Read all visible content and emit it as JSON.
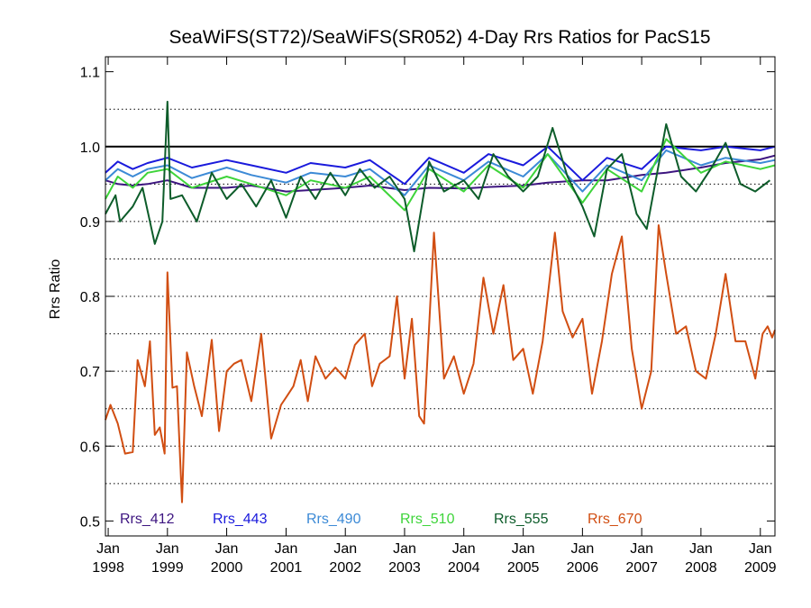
{
  "chart_data": {
    "type": "line",
    "title": "SeaWiFS(ST72)/SeaWiFS(SR052) 4-Day Rrs Ratios for PacS15",
    "xlabel": "",
    "ylabel": "Rrs Ratio",
    "xlim": [
      "1997-12-15",
      "2009-04-01"
    ],
    "ylim": [
      0.48,
      1.12
    ],
    "y_ticks": [
      0.5,
      0.6,
      0.7,
      0.8,
      0.9,
      1.0,
      1.1
    ],
    "y_tick_labels": [
      "0.5",
      "0.6",
      "0.7",
      "0.8",
      "0.9",
      "1.0",
      "1.1"
    ],
    "x_ticks": [
      {
        "date": "1998-01-01",
        "month": "Jan",
        "year": "1998"
      },
      {
        "date": "1999-01-01",
        "month": "Jan",
        "year": "1999"
      },
      {
        "date": "2000-01-01",
        "month": "Jan",
        "year": "2000"
      },
      {
        "date": "2001-01-01",
        "month": "Jan",
        "year": "2001"
      },
      {
        "date": "2002-01-01",
        "month": "Jan",
        "year": "2002"
      },
      {
        "date": "2003-01-01",
        "month": "Jan",
        "year": "2003"
      },
      {
        "date": "2004-01-01",
        "month": "Jan",
        "year": "2004"
      },
      {
        "date": "2005-01-01",
        "month": "Jan",
        "year": "2005"
      },
      {
        "date": "2006-01-01",
        "month": "Jan",
        "year": "2006"
      },
      {
        "date": "2007-01-01",
        "month": "Jan",
        "year": "2007"
      },
      {
        "date": "2008-01-01",
        "month": "Jan",
        "year": "2008"
      },
      {
        "date": "2009-01-01",
        "month": "Jan",
        "year": "2009"
      }
    ],
    "gridlines_y": [
      0.55,
      0.6,
      0.65,
      0.7,
      0.75,
      0.8,
      0.85,
      0.9,
      0.95,
      1.05
    ],
    "reference_line": 1.0,
    "grid": "dotted horizontal",
    "legend_placement": "bottom",
    "series": [
      {
        "name": "Rrs_412",
        "color": "#3d1580",
        "points": [
          [
            "1997-12-15",
            0.955
          ],
          [
            "1998-03-01",
            0.95
          ],
          [
            "1998-06-01",
            0.948
          ],
          [
            "1998-09-01",
            0.95
          ],
          [
            "1999-01-01",
            0.955
          ],
          [
            "1999-06-01",
            0.945
          ],
          [
            "2000-01-01",
            0.945
          ],
          [
            "2000-06-01",
            0.948
          ],
          [
            "2001-01-01",
            0.94
          ],
          [
            "2001-06-01",
            0.942
          ],
          [
            "2002-01-01",
            0.945
          ],
          [
            "2002-06-01",
            0.948
          ],
          [
            "2003-01-01",
            0.942
          ],
          [
            "2003-06-01",
            0.945
          ],
          [
            "2004-01-01",
            0.944
          ],
          [
            "2004-06-01",
            0.946
          ],
          [
            "2005-01-01",
            0.948
          ],
          [
            "2005-06-01",
            0.952
          ],
          [
            "2006-01-01",
            0.955
          ],
          [
            "2006-06-01",
            0.955
          ],
          [
            "2007-01-01",
            0.962
          ],
          [
            "2007-06-01",
            0.965
          ],
          [
            "2008-01-01",
            0.972
          ],
          [
            "2008-06-01",
            0.978
          ],
          [
            "2009-01-01",
            0.983
          ],
          [
            "2009-04-01",
            0.988
          ]
        ]
      },
      {
        "name": "Rrs_443",
        "color": "#1a1adc",
        "points": [
          [
            "1997-12-15",
            0.965
          ],
          [
            "1998-03-01",
            0.98
          ],
          [
            "1998-06-01",
            0.97
          ],
          [
            "1998-09-01",
            0.978
          ],
          [
            "1999-01-01",
            0.985
          ],
          [
            "1999-06-01",
            0.972
          ],
          [
            "2000-01-01",
            0.982
          ],
          [
            "2000-06-01",
            0.975
          ],
          [
            "2001-01-01",
            0.965
          ],
          [
            "2001-06-01",
            0.978
          ],
          [
            "2002-01-01",
            0.972
          ],
          [
            "2002-06-01",
            0.982
          ],
          [
            "2003-01-01",
            0.95
          ],
          [
            "2003-06-01",
            0.985
          ],
          [
            "2004-01-01",
            0.965
          ],
          [
            "2004-06-01",
            0.99
          ],
          [
            "2005-01-01",
            0.975
          ],
          [
            "2005-06-01",
            1.0
          ],
          [
            "2006-01-01",
            0.955
          ],
          [
            "2006-06-01",
            0.985
          ],
          [
            "2007-01-01",
            0.97
          ],
          [
            "2007-06-01",
            1.0
          ],
          [
            "2008-01-01",
            0.995
          ],
          [
            "2008-06-01",
            1.0
          ],
          [
            "2009-01-01",
            0.995
          ],
          [
            "2009-04-01",
            1.0
          ]
        ]
      },
      {
        "name": "Rrs_490",
        "color": "#3c8ad6",
        "points": [
          [
            "1997-12-15",
            0.955
          ],
          [
            "1998-03-01",
            0.97
          ],
          [
            "1998-06-01",
            0.96
          ],
          [
            "1998-09-01",
            0.97
          ],
          [
            "1999-01-01",
            0.975
          ],
          [
            "1999-06-01",
            0.958
          ],
          [
            "2000-01-01",
            0.972
          ],
          [
            "2000-06-01",
            0.962
          ],
          [
            "2001-01-01",
            0.952
          ],
          [
            "2001-06-01",
            0.965
          ],
          [
            "2002-01-01",
            0.96
          ],
          [
            "2002-06-01",
            0.97
          ],
          [
            "2003-01-01",
            0.935
          ],
          [
            "2003-06-01",
            0.975
          ],
          [
            "2004-01-01",
            0.955
          ],
          [
            "2004-06-01",
            0.98
          ],
          [
            "2005-01-01",
            0.96
          ],
          [
            "2005-06-01",
            0.99
          ],
          [
            "2006-01-01",
            0.94
          ],
          [
            "2006-06-01",
            0.975
          ],
          [
            "2007-01-01",
            0.955
          ],
          [
            "2007-06-01",
            0.995
          ],
          [
            "2008-01-01",
            0.975
          ],
          [
            "2008-06-01",
            0.985
          ],
          [
            "2009-01-01",
            0.978
          ],
          [
            "2009-04-01",
            0.982
          ]
        ]
      },
      {
        "name": "Rrs_510",
        "color": "#3ed43a",
        "points": [
          [
            "1997-12-15",
            0.93
          ],
          [
            "1998-03-01",
            0.96
          ],
          [
            "1998-06-01",
            0.945
          ],
          [
            "1998-09-01",
            0.965
          ],
          [
            "1999-01-01",
            0.97
          ],
          [
            "1999-06-01",
            0.945
          ],
          [
            "2000-01-01",
            0.96
          ],
          [
            "2000-06-01",
            0.95
          ],
          [
            "2001-01-01",
            0.935
          ],
          [
            "2001-06-01",
            0.955
          ],
          [
            "2002-01-01",
            0.945
          ],
          [
            "2002-06-01",
            0.96
          ],
          [
            "2003-01-01",
            0.915
          ],
          [
            "2003-06-01",
            0.97
          ],
          [
            "2004-01-01",
            0.94
          ],
          [
            "2004-06-01",
            0.975
          ],
          [
            "2005-01-01",
            0.945
          ],
          [
            "2005-06-01",
            0.99
          ],
          [
            "2006-01-01",
            0.925
          ],
          [
            "2006-06-01",
            0.97
          ],
          [
            "2007-01-01",
            0.94
          ],
          [
            "2007-06-01",
            1.01
          ],
          [
            "2008-01-01",
            0.965
          ],
          [
            "2008-06-01",
            0.98
          ],
          [
            "2009-01-01",
            0.97
          ],
          [
            "2009-04-01",
            0.975
          ]
        ]
      },
      {
        "name": "Rrs_555",
        "color": "#0d5c2a",
        "points": [
          [
            "1997-12-15",
            0.91
          ],
          [
            "1998-02-15",
            0.935
          ],
          [
            "1998-03-15",
            0.9
          ],
          [
            "1998-06-01",
            0.92
          ],
          [
            "1998-08-01",
            0.945
          ],
          [
            "1998-10-15",
            0.87
          ],
          [
            "1998-12-01",
            0.9
          ],
          [
            "1999-01-01",
            1.06
          ],
          [
            "1999-01-20",
            0.93
          ],
          [
            "1999-04-01",
            0.935
          ],
          [
            "1999-07-01",
            0.9
          ],
          [
            "1999-10-01",
            0.965
          ],
          [
            "2000-01-01",
            0.93
          ],
          [
            "2000-04-01",
            0.95
          ],
          [
            "2000-07-01",
            0.92
          ],
          [
            "2000-10-01",
            0.955
          ],
          [
            "2001-01-01",
            0.905
          ],
          [
            "2001-04-01",
            0.96
          ],
          [
            "2001-07-01",
            0.93
          ],
          [
            "2001-10-01",
            0.965
          ],
          [
            "2002-01-01",
            0.935
          ],
          [
            "2002-04-01",
            0.97
          ],
          [
            "2002-07-01",
            0.945
          ],
          [
            "2002-10-01",
            0.96
          ],
          [
            "2003-01-01",
            0.93
          ],
          [
            "2003-03-01",
            0.86
          ],
          [
            "2003-06-01",
            0.98
          ],
          [
            "2003-09-01",
            0.94
          ],
          [
            "2004-01-01",
            0.955
          ],
          [
            "2004-04-01",
            0.93
          ],
          [
            "2004-07-01",
            0.99
          ],
          [
            "2004-10-01",
            0.96
          ],
          [
            "2005-01-01",
            0.94
          ],
          [
            "2005-04-01",
            0.96
          ],
          [
            "2005-07-01",
            1.025
          ],
          [
            "2005-10-01",
            0.96
          ],
          [
            "2006-01-01",
            0.92
          ],
          [
            "2006-03-15",
            0.88
          ],
          [
            "2006-06-01",
            0.97
          ],
          [
            "2006-09-01",
            0.99
          ],
          [
            "2006-12-01",
            0.91
          ],
          [
            "2007-02-01",
            0.89
          ],
          [
            "2007-06-01",
            1.03
          ],
          [
            "2007-09-01",
            0.96
          ],
          [
            "2007-12-01",
            0.94
          ],
          [
            "2008-03-01",
            0.97
          ],
          [
            "2008-06-01",
            1.005
          ],
          [
            "2008-09-01",
            0.95
          ],
          [
            "2008-12-01",
            0.94
          ],
          [
            "2009-03-01",
            0.955
          ]
        ]
      },
      {
        "name": "Rrs_670",
        "color": "#d14e12",
        "points": [
          [
            "1997-12-15",
            0.635
          ],
          [
            "1998-01-15",
            0.655
          ],
          [
            "1998-03-01",
            0.63
          ],
          [
            "1998-04-15",
            0.59
          ],
          [
            "1998-06-01",
            0.592
          ],
          [
            "1998-07-01",
            0.715
          ],
          [
            "1998-08-15",
            0.68
          ],
          [
            "1998-09-15",
            0.74
          ],
          [
            "1998-10-15",
            0.615
          ],
          [
            "1998-11-15",
            0.625
          ],
          [
            "1998-12-15",
            0.59
          ],
          [
            "1999-01-01",
            0.832
          ],
          [
            "1999-02-01",
            0.678
          ],
          [
            "1999-03-01",
            0.68
          ],
          [
            "1999-04-01",
            0.525
          ],
          [
            "1999-05-01",
            0.725
          ],
          [
            "1999-06-15",
            0.68
          ],
          [
            "1999-08-01",
            0.64
          ],
          [
            "1999-10-01",
            0.742
          ],
          [
            "1999-11-15",
            0.62
          ],
          [
            "2000-01-01",
            0.7
          ],
          [
            "2000-02-15",
            0.71
          ],
          [
            "2000-04-01",
            0.715
          ],
          [
            "2000-06-01",
            0.66
          ],
          [
            "2000-08-01",
            0.75
          ],
          [
            "2000-10-01",
            0.61
          ],
          [
            "2000-12-01",
            0.655
          ],
          [
            "2001-01-01",
            0.665
          ],
          [
            "2001-02-15",
            0.68
          ],
          [
            "2001-04-01",
            0.715
          ],
          [
            "2001-05-15",
            0.66
          ],
          [
            "2001-07-01",
            0.72
          ],
          [
            "2001-09-01",
            0.69
          ],
          [
            "2001-11-01",
            0.705
          ],
          [
            "2002-01-01",
            0.69
          ],
          [
            "2002-03-01",
            0.735
          ],
          [
            "2002-05-01",
            0.75
          ],
          [
            "2002-06-15",
            0.68
          ],
          [
            "2002-08-01",
            0.71
          ],
          [
            "2002-10-01",
            0.72
          ],
          [
            "2002-11-15",
            0.8
          ],
          [
            "2003-01-01",
            0.69
          ],
          [
            "2003-02-15",
            0.77
          ],
          [
            "2003-04-01",
            0.64
          ],
          [
            "2003-05-01",
            0.63
          ],
          [
            "2003-07-01",
            0.885
          ],
          [
            "2003-09-01",
            0.69
          ],
          [
            "2003-11-01",
            0.72
          ],
          [
            "2004-01-01",
            0.67
          ],
          [
            "2004-03-01",
            0.71
          ],
          [
            "2004-05-01",
            0.825
          ],
          [
            "2004-07-01",
            0.75
          ],
          [
            "2004-09-01",
            0.815
          ],
          [
            "2004-11-01",
            0.715
          ],
          [
            "2005-01-01",
            0.73
          ],
          [
            "2005-03-01",
            0.67
          ],
          [
            "2005-05-01",
            0.74
          ],
          [
            "2005-07-15",
            0.885
          ],
          [
            "2005-09-01",
            0.78
          ],
          [
            "2005-11-01",
            0.745
          ],
          [
            "2006-01-01",
            0.77
          ],
          [
            "2006-03-01",
            0.67
          ],
          [
            "2006-05-01",
            0.74
          ],
          [
            "2006-07-01",
            0.83
          ],
          [
            "2006-09-01",
            0.88
          ],
          [
            "2006-11-01",
            0.73
          ],
          [
            "2007-01-01",
            0.65
          ],
          [
            "2007-03-01",
            0.7
          ],
          [
            "2007-04-15",
            0.895
          ],
          [
            "2007-06-01",
            0.83
          ],
          [
            "2007-08-01",
            0.75
          ],
          [
            "2007-10-01",
            0.76
          ],
          [
            "2007-12-01",
            0.7
          ],
          [
            "2008-02-01",
            0.69
          ],
          [
            "2008-04-01",
            0.75
          ],
          [
            "2008-06-01",
            0.83
          ],
          [
            "2008-08-01",
            0.74
          ],
          [
            "2008-10-01",
            0.74
          ],
          [
            "2008-12-01",
            0.69
          ],
          [
            "2009-01-15",
            0.75
          ],
          [
            "2009-02-15",
            0.76
          ],
          [
            "2009-03-15",
            0.745
          ],
          [
            "2009-04-01",
            0.755
          ]
        ]
      }
    ]
  }
}
